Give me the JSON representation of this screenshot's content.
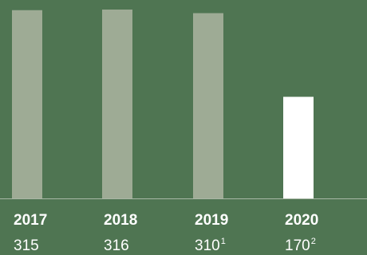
{
  "chart_data": {
    "type": "bar",
    "categories": [
      "2017",
      "2018",
      "2019",
      "2020"
    ],
    "values": [
      315,
      316,
      310,
      170
    ],
    "value_labels": [
      "315",
      "316",
      "310",
      "170"
    ],
    "footnote_markers": [
      "",
      "",
      "1",
      "2"
    ],
    "ylim": [
      0,
      316
    ],
    "grid": false,
    "legend": "none",
    "colors": {
      "background": "#4f7552",
      "bar": "#9eab95",
      "highlight_bar": "#ffffff",
      "axis": "#a9b8a6",
      "text": "#ffffff"
    },
    "highlight_index": 3
  }
}
